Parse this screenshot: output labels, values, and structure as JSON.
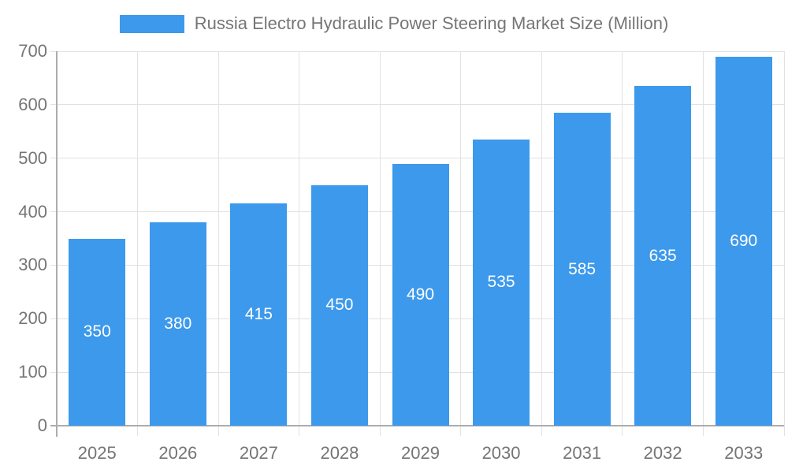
{
  "legend": {
    "label": "Russia Electro Hydraulic Power Steering Market Size (Million)"
  },
  "chart_data": {
    "type": "bar",
    "title": "Russia Electro Hydraulic Power Steering Market Size (Million)",
    "categories": [
      "2025",
      "2026",
      "2027",
      "2028",
      "2029",
      "2030",
      "2031",
      "2032",
      "2033"
    ],
    "values": [
      350,
      380,
      415,
      450,
      490,
      535,
      585,
      635,
      690
    ],
    "xlabel": "",
    "ylabel": "",
    "ylim": [
      0,
      700
    ],
    "yticks": [
      0,
      100,
      200,
      300,
      400,
      500,
      600,
      700
    ],
    "grid": true,
    "legend_position": "top",
    "bar_label_position": "center-inside",
    "colors": {
      "bar": "#3C99EC",
      "bar_label": "#FFFFFF",
      "axis_text": "#757575",
      "grid": "#E2E2E2",
      "axis_line": "#ADADAD"
    }
  }
}
